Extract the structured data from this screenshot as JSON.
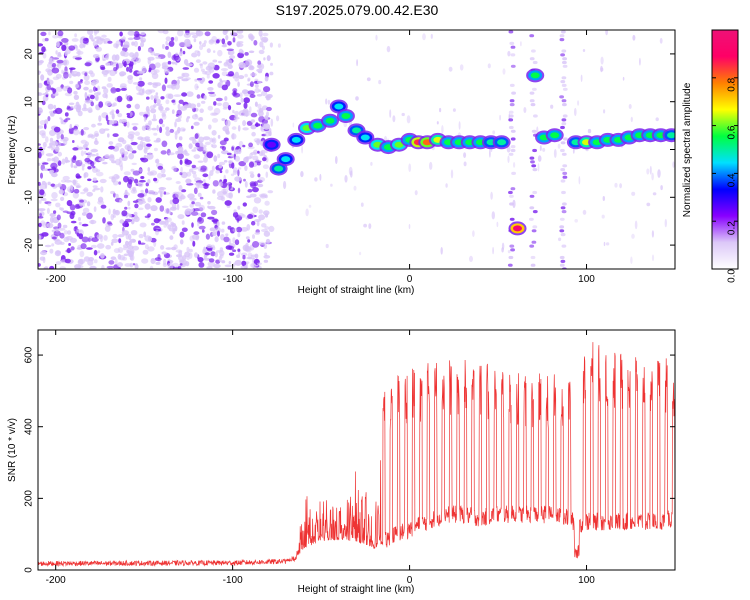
{
  "title": "S197.2025.079.00.42.E30",
  "colors": {
    "snr_line": "#ee3333",
    "frame": "#000000",
    "scatter_purple": "#7a22ee",
    "scatter_light": "#d8c4f8"
  },
  "chart_data": [
    {
      "type": "heatmap",
      "xlabel": "Height of straight line (km)",
      "ylabel": "Frequency (Hz)",
      "xlim": [
        -210,
        150
      ],
      "ylim": [
        -25,
        25
      ],
      "xticks": [
        -200,
        -100,
        0,
        100
      ],
      "yticks": [
        -20,
        -10,
        0,
        10,
        20
      ],
      "xtick_labels": [
        "-200",
        "-100",
        "0",
        "100"
      ],
      "ytick_labels": [
        "-20",
        "-10",
        "0",
        "10",
        "20"
      ],
      "colorbar": {
        "label": "Normalized spectral amplitude",
        "range": [
          0.0,
          1.0
        ],
        "ticks": [
          0.0,
          0.2,
          0.4,
          0.6,
          0.8
        ],
        "tick_labels": [
          "0.0",
          "0.2",
          "0.4",
          "0.6",
          "0.8"
        ],
        "colormap": [
          "#ffffff",
          "#dcc8f8",
          "#8800ff",
          "#0000ff",
          "#00e0ff",
          "#00ff40",
          "#ffff00",
          "#ff8000",
          "#ff0066",
          "#ee1177"
        ]
      },
      "ridge": [
        {
          "x": -78,
          "y": 1,
          "a": 0.25
        },
        {
          "x": -74,
          "y": -4,
          "a": 0.5
        },
        {
          "x": -70,
          "y": -2,
          "a": 0.45
        },
        {
          "x": -64,
          "y": 2,
          "a": 0.45
        },
        {
          "x": -58,
          "y": 4.5,
          "a": 0.6
        },
        {
          "x": -52,
          "y": 5,
          "a": 0.55
        },
        {
          "x": -45,
          "y": 6,
          "a": 0.55
        },
        {
          "x": -40,
          "y": 9,
          "a": 0.45
        },
        {
          "x": -36,
          "y": 7,
          "a": 0.55
        },
        {
          "x": -30,
          "y": 4,
          "a": 0.5
        },
        {
          "x": -25,
          "y": 2.5,
          "a": 0.45
        },
        {
          "x": -18,
          "y": 1,
          "a": 0.6
        },
        {
          "x": -12,
          "y": 0.5,
          "a": 0.55
        },
        {
          "x": -6,
          "y": 1,
          "a": 0.6
        },
        {
          "x": 0,
          "y": 2,
          "a": 0.55
        },
        {
          "x": 5,
          "y": 1.5,
          "a": 0.85
        },
        {
          "x": 10,
          "y": 1.5,
          "a": 0.8
        },
        {
          "x": 16,
          "y": 2,
          "a": 0.65
        },
        {
          "x": 22,
          "y": 1.5,
          "a": 0.55
        },
        {
          "x": 28,
          "y": 1.5,
          "a": 0.55
        },
        {
          "x": 34,
          "y": 1.5,
          "a": 0.55
        },
        {
          "x": 40,
          "y": 1.5,
          "a": 0.55
        },
        {
          "x": 46,
          "y": 1.5,
          "a": 0.5
        },
        {
          "x": 52,
          "y": 1.5,
          "a": 0.5
        },
        {
          "x": 61,
          "y": -16.5,
          "a": 0.95
        },
        {
          "x": 71,
          "y": 15.5,
          "a": 0.55
        },
        {
          "x": 76,
          "y": 2.5,
          "a": 0.55
        },
        {
          "x": 82,
          "y": 3,
          "a": 0.55
        },
        {
          "x": 94,
          "y": 1.5,
          "a": 0.5
        },
        {
          "x": 100,
          "y": 1.5,
          "a": 0.65
        },
        {
          "x": 106,
          "y": 1.5,
          "a": 0.55
        },
        {
          "x": 112,
          "y": 2,
          "a": 0.55
        },
        {
          "x": 118,
          "y": 2,
          "a": 0.55
        },
        {
          "x": 124,
          "y": 2.5,
          "a": 0.55
        },
        {
          "x": 130,
          "y": 3,
          "a": 0.55
        },
        {
          "x": 136,
          "y": 3,
          "a": 0.55
        },
        {
          "x": 142,
          "y": 3,
          "a": 0.55
        },
        {
          "x": 148,
          "y": 3,
          "a": 0.5
        }
      ]
    },
    {
      "type": "line",
      "xlabel": "Height of straight line (km)",
      "ylabel": "SNR (10 * v/v)",
      "xlim": [
        -210,
        150
      ],
      "ylim": [
        0,
        670
      ],
      "xticks": [
        -200,
        -100,
        0,
        100
      ],
      "yticks": [
        0,
        200,
        400,
        600
      ],
      "xtick_labels": [
        "-200",
        "-100",
        "0",
        "100"
      ],
      "ytick_labels": [
        "0",
        "200",
        "400",
        "600"
      ],
      "series": [
        {
          "envelope": {
            "x": [
              -210,
              -100,
              -65,
              -60,
              -50,
              -40,
              -30,
              -20,
              -15,
              -10,
              0,
              10,
              20,
              30,
              40,
              50,
              60,
              70,
              80,
              90,
              95,
              100,
              110,
              120,
              130,
              140,
              150
            ],
            "base": [
              18,
              20,
              25,
              60,
              80,
              85,
              80,
              60,
              70,
              90,
              110,
              130,
              150,
              150,
              140,
              150,
              150,
              150,
              150,
              140,
              120,
              130,
              130,
              130,
              130,
              130,
              140
            ],
            "peak": [
              30,
              35,
              40,
              240,
              250,
              260,
              300,
              200,
              500,
              550,
              560,
              580,
              600,
              590,
              580,
              580,
              560,
              550,
              550,
              540,
              620,
              650,
              620,
              610,
              600,
              600,
              590
            ]
          }
        }
      ]
    }
  ]
}
